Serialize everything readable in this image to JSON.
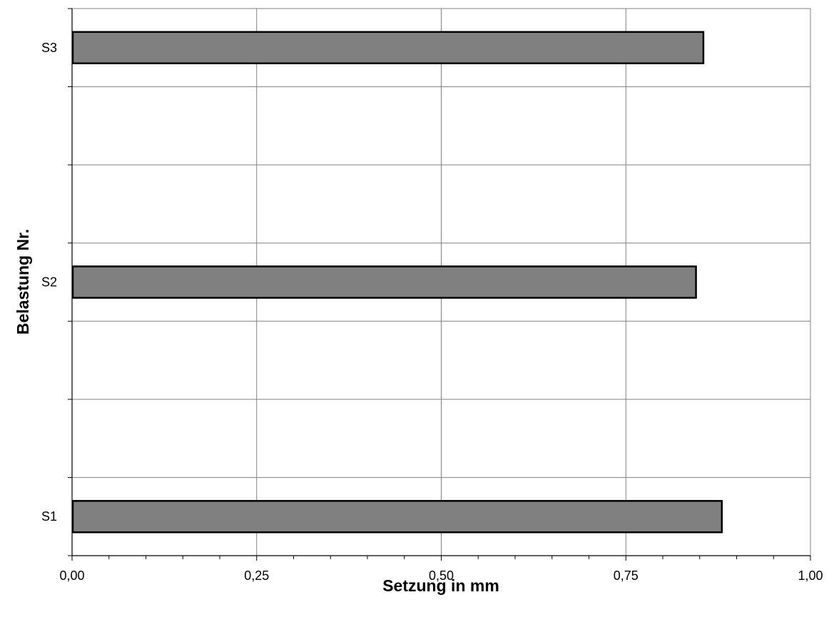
{
  "chart_data": {
    "type": "bar",
    "orientation": "horizontal",
    "title": "",
    "xlabel": "Setzung in mm",
    "ylabel": "Belastung Nr.",
    "categories": [
      "S3",
      "S2",
      "S1"
    ],
    "values": [
      0.855,
      0.845,
      0.88
    ],
    "xlim": [
      0,
      1.0
    ],
    "xticks": [
      0,
      0.25,
      0.5,
      0.75,
      1.0
    ],
    "xtick_labels": [
      "0,00",
      "0,25",
      "0,50",
      "0,75",
      "1,00"
    ],
    "x_minor_step": 0.05,
    "grid": true,
    "legend": "none",
    "colors": {
      "bar_fill": "#808080",
      "bar_edge": "#000000",
      "grid": "#808080"
    }
  }
}
